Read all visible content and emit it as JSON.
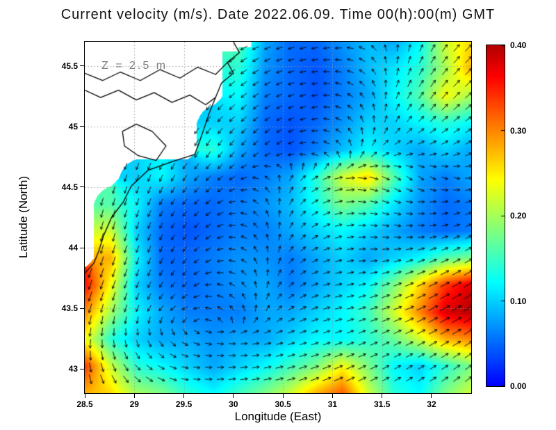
{
  "chart_data": {
    "type": "heatmap",
    "title": "Current velocity (m/s). Date 2022.06.09. Time 00(h):00(m) GMT",
    "annotation": "Z = 2.5 m",
    "xlabel": "Longitude (East)",
    "ylabel": "Latitude (North)",
    "units": "m/s",
    "x_range": [
      28.5,
      32.4
    ],
    "y_range": [
      42.8,
      45.7
    ],
    "x_ticks": [
      {
        "label": "28.5",
        "value": 28.5
      },
      {
        "label": "29",
        "value": 29
      },
      {
        "label": "29.5",
        "value": 29.5
      },
      {
        "label": "30",
        "value": 30
      },
      {
        "label": "30.5",
        "value": 30.5
      },
      {
        "label": "31",
        "value": 31
      },
      {
        "label": "31.5",
        "value": 31.5
      },
      {
        "label": "32",
        "value": 32
      }
    ],
    "y_ticks": [
      {
        "label": "43",
        "value": 43
      },
      {
        "label": "43.5",
        "value": 43.5
      },
      {
        "label": "44",
        "value": 44
      },
      {
        "label": "44.5",
        "value": 44.5
      },
      {
        "label": "45",
        "value": 45
      },
      {
        "label": "45.5",
        "value": 45.5
      }
    ],
    "colorbar": {
      "min": 0,
      "max": 0.4,
      "ticks": [
        {
          "label": "0.40",
          "value": 0.4
        },
        {
          "label": "0.30",
          "value": 0.3
        },
        {
          "label": "0.20",
          "value": 0.2
        },
        {
          "label": "0.10",
          "value": 0.1
        },
        {
          "label": "0.00",
          "value": 0.0
        }
      ]
    },
    "grid_lons": [
      28.5,
      28.76,
      29.02,
      29.28,
      29.54,
      29.8,
      30.06,
      30.32,
      30.58,
      30.84,
      31.1,
      31.36,
      31.62,
      31.88,
      32.14,
      32.4
    ],
    "grid_lats": [
      45.7,
      45.48,
      45.25,
      45.03,
      44.81,
      44.58,
      44.36,
      44.14,
      43.91,
      43.69,
      43.47,
      43.24,
      43.02,
      42.8
    ],
    "speed": [
      [
        null,
        null,
        null,
        null,
        null,
        null,
        0.16,
        0.08,
        0.05,
        0.05,
        0.07,
        0.09,
        0.08,
        0.12,
        0.22,
        0.26
      ],
      [
        null,
        null,
        null,
        null,
        null,
        null,
        0.14,
        0.07,
        0.05,
        0.04,
        0.06,
        0.09,
        0.11,
        0.14,
        0.2,
        0.28
      ],
      [
        null,
        null,
        null,
        null,
        null,
        null,
        0.12,
        0.06,
        0.05,
        0.04,
        0.06,
        0.08,
        0.12,
        0.16,
        0.24,
        0.2
      ],
      [
        null,
        null,
        null,
        null,
        null,
        0.1,
        0.1,
        0.05,
        0.04,
        0.05,
        0.07,
        0.1,
        0.1,
        0.12,
        0.14,
        0.12
      ],
      [
        null,
        null,
        null,
        null,
        null,
        0.14,
        0.08,
        0.05,
        0.04,
        0.06,
        0.09,
        0.12,
        0.1,
        0.08,
        0.1,
        0.08
      ],
      [
        null,
        null,
        0.1,
        0.12,
        0.08,
        0.06,
        0.05,
        0.06,
        0.08,
        0.14,
        0.22,
        0.26,
        0.16,
        0.08,
        0.06,
        0.08
      ],
      [
        null,
        0.16,
        0.12,
        0.06,
        0.05,
        0.05,
        0.06,
        0.07,
        0.09,
        0.13,
        0.18,
        0.16,
        0.11,
        0.07,
        0.05,
        0.06
      ],
      [
        null,
        0.22,
        0.1,
        0.05,
        0.04,
        0.05,
        0.06,
        0.06,
        0.08,
        0.1,
        0.12,
        0.1,
        0.08,
        0.06,
        0.05,
        0.06
      ],
      [
        null,
        0.28,
        0.12,
        0.05,
        0.05,
        0.06,
        0.07,
        0.07,
        0.06,
        0.08,
        0.1,
        0.08,
        0.1,
        0.12,
        0.16,
        0.18
      ],
      [
        0.36,
        0.24,
        0.1,
        0.06,
        0.05,
        0.06,
        0.07,
        0.08,
        0.06,
        0.08,
        0.1,
        0.12,
        0.18,
        0.26,
        0.34,
        0.38
      ],
      [
        0.3,
        0.2,
        0.12,
        0.08,
        0.06,
        0.06,
        0.06,
        0.08,
        0.08,
        0.1,
        0.12,
        0.15,
        0.22,
        0.3,
        0.38,
        0.4
      ],
      [
        0.24,
        0.14,
        0.1,
        0.08,
        0.08,
        0.07,
        0.08,
        0.08,
        0.1,
        0.12,
        0.12,
        0.14,
        0.17,
        0.22,
        0.28,
        0.3
      ],
      [
        0.34,
        0.22,
        0.14,
        0.12,
        0.1,
        0.08,
        0.1,
        0.12,
        0.15,
        0.18,
        0.24,
        0.18,
        0.12,
        0.1,
        0.14,
        0.18
      ],
      [
        0.28,
        0.26,
        0.2,
        0.18,
        0.14,
        0.12,
        0.15,
        0.18,
        0.22,
        0.28,
        0.32,
        0.22,
        0.14,
        0.12,
        0.18,
        0.22
      ]
    ],
    "direction_deg": [
      [
        null,
        null,
        null,
        null,
        null,
        null,
        210,
        200,
        195,
        190,
        185,
        150,
        90,
        70,
        55,
        45
      ],
      [
        null,
        null,
        null,
        null,
        null,
        null,
        215,
        205,
        195,
        185,
        170,
        140,
        80,
        60,
        50,
        45
      ],
      [
        null,
        null,
        null,
        null,
        null,
        null,
        220,
        210,
        200,
        190,
        160,
        120,
        70,
        55,
        50,
        40
      ],
      [
        null,
        null,
        null,
        null,
        null,
        230,
        225,
        215,
        205,
        185,
        150,
        100,
        60,
        45,
        40,
        35
      ],
      [
        null,
        null,
        null,
        null,
        null,
        240,
        230,
        220,
        200,
        170,
        120,
        60,
        30,
        20,
        25,
        30
      ],
      [
        null,
        null,
        250,
        245,
        235,
        225,
        210,
        150,
        60,
        30,
        10,
        350,
        330,
        320,
        340,
        0
      ],
      [
        null,
        255,
        250,
        240,
        230,
        215,
        180,
        120,
        60,
        30,
        10,
        350,
        340,
        0,
        10,
        20
      ],
      [
        null,
        255,
        250,
        245,
        235,
        210,
        170,
        110,
        60,
        30,
        15,
        0,
        350,
        0,
        15,
        25
      ],
      [
        null,
        255,
        250,
        245,
        230,
        200,
        160,
        100,
        50,
        25,
        10,
        0,
        10,
        20,
        25,
        30
      ],
      [
        250,
        252,
        248,
        240,
        220,
        180,
        140,
        80,
        40,
        20,
        10,
        15,
        20,
        25,
        28,
        30
      ],
      [
        255,
        258,
        250,
        230,
        200,
        160,
        120,
        60,
        30,
        20,
        15,
        18,
        22,
        25,
        28,
        30
      ],
      [
        262,
        270,
        280,
        300,
        330,
        350,
        0,
        10,
        15,
        18,
        20,
        22,
        25,
        28,
        30,
        32
      ],
      [
        275,
        290,
        310,
        330,
        350,
        0,
        5,
        10,
        15,
        18,
        22,
        25,
        28,
        30,
        32,
        35
      ],
      [
        285,
        300,
        320,
        340,
        355,
        5,
        10,
        12,
        15,
        20,
        25,
        28,
        30,
        32,
        35,
        38
      ]
    ],
    "coastlines": [
      [
        [
          30.0,
          45.7
        ],
        [
          30.06,
          45.61
        ],
        [
          29.94,
          45.53
        ],
        [
          30.0,
          45.44
        ],
        [
          29.88,
          45.36
        ],
        [
          29.82,
          45.24
        ],
        [
          29.76,
          45.12
        ],
        [
          29.71,
          45.0
        ],
        [
          29.66,
          44.88
        ],
        [
          29.61,
          44.77
        ],
        [
          29.38,
          44.71
        ],
        [
          29.14,
          44.64
        ],
        [
          28.97,
          44.51
        ],
        [
          28.89,
          44.38
        ],
        [
          28.77,
          44.25
        ],
        [
          28.69,
          44.1
        ],
        [
          28.64,
          43.97
        ],
        [
          28.59,
          43.87
        ],
        [
          28.5,
          43.79
        ]
      ],
      [
        [
          28.5,
          45.44
        ],
        [
          28.68,
          45.38
        ],
        [
          28.86,
          45.45
        ],
        [
          29.06,
          45.38
        ],
        [
          29.26,
          45.47
        ],
        [
          29.46,
          45.4
        ],
        [
          29.64,
          45.49
        ],
        [
          29.82,
          45.43
        ],
        [
          29.94,
          45.53
        ]
      ],
      [
        [
          28.5,
          45.3
        ],
        [
          28.66,
          45.24
        ],
        [
          28.84,
          45.3
        ],
        [
          29.02,
          45.22
        ],
        [
          29.2,
          45.28
        ],
        [
          29.38,
          45.2
        ],
        [
          29.56,
          45.26
        ],
        [
          29.72,
          45.18
        ],
        [
          29.82,
          45.24
        ]
      ],
      [
        [
          28.88,
          44.96
        ],
        [
          29.02,
          45.02
        ],
        [
          29.18,
          44.96
        ],
        [
          29.32,
          44.84
        ],
        [
          29.22,
          44.72
        ],
        [
          29.04,
          44.76
        ],
        [
          28.9,
          44.84
        ],
        [
          28.88,
          44.96
        ]
      ]
    ],
    "mask_cells": [
      [
        29.85,
        45.62,
        30.05,
        45.7
      ],
      [
        30.05,
        45.655,
        30.18,
        45.7
      ],
      [
        29.78,
        45.665,
        29.85,
        45.7
      ]
    ]
  }
}
